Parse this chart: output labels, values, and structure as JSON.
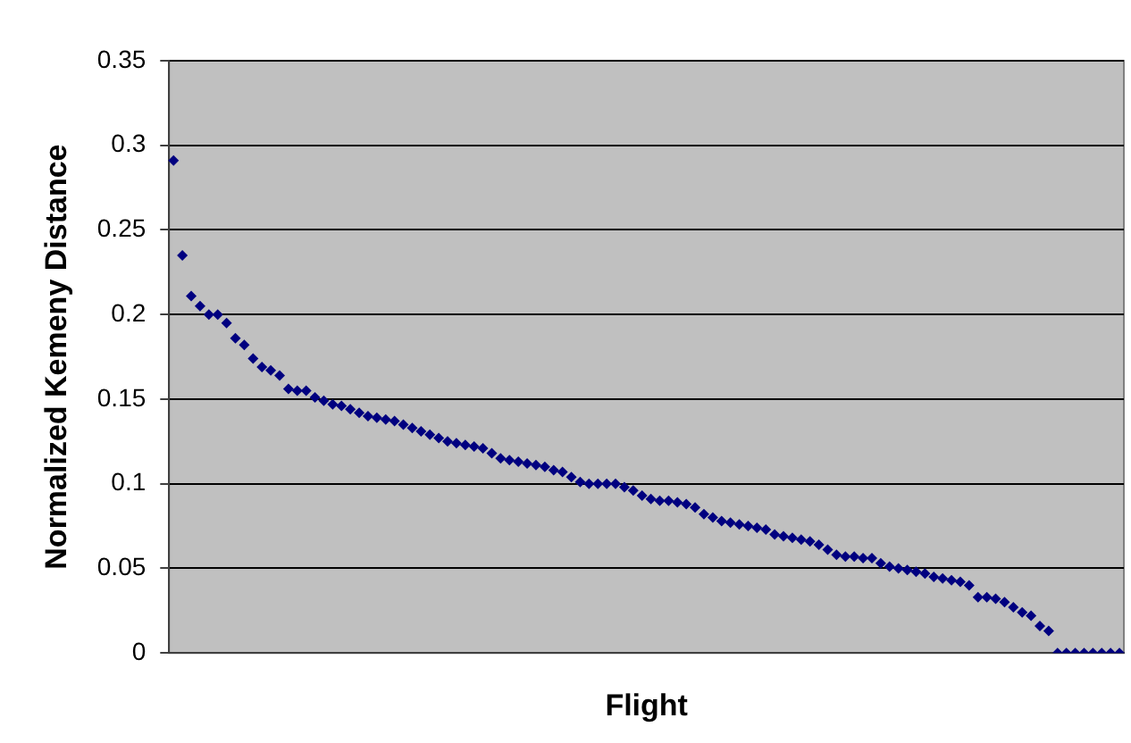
{
  "chart_data": {
    "type": "scatter",
    "xlabel": "Flight",
    "ylabel": "Normalized Kemeny Distance",
    "categories": [
      null,
      null,
      null,
      null,
      null,
      null,
      null,
      null,
      null,
      null,
      null,
      null,
      null,
      null,
      null,
      null,
      null,
      null,
      null,
      null,
      null,
      null,
      null,
      null,
      null,
      null,
      null,
      null,
      null,
      null,
      null,
      null,
      null,
      null,
      null,
      null,
      null,
      null,
      null,
      null,
      null,
      null,
      null,
      null,
      null,
      null,
      null,
      null,
      null,
      null,
      null,
      null,
      null,
      null,
      null,
      null,
      null,
      null,
      null,
      null,
      null,
      null,
      null,
      null,
      null,
      null,
      null,
      null,
      null,
      null,
      null,
      null,
      null,
      null,
      null,
      null,
      null,
      null,
      null,
      null,
      null,
      null,
      null,
      null,
      null,
      null,
      null,
      null,
      null,
      null,
      null,
      null,
      null,
      null,
      null,
      null,
      null,
      null,
      null,
      null,
      null,
      null,
      null,
      null,
      null,
      null,
      null,
      null
    ],
    "series": [
      {
        "color": "#000080",
        "values": [
          0.291,
          0.235,
          0.211,
          0.205,
          0.2,
          0.2,
          0.195,
          0.186,
          0.182,
          0.174,
          0.169,
          0.167,
          0.164,
          0.156,
          0.155,
          0.155,
          0.151,
          0.149,
          0.147,
          0.146,
          0.144,
          0.142,
          0.14,
          0.139,
          0.138,
          0.137,
          0.135,
          0.133,
          0.131,
          0.129,
          0.127,
          0.125,
          0.124,
          0.123,
          0.122,
          0.121,
          0.118,
          0.115,
          0.114,
          0.113,
          0.112,
          0.111,
          0.11,
          0.108,
          0.107,
          0.104,
          0.101,
          0.1,
          0.1,
          0.1,
          0.1,
          0.098,
          0.096,
          0.093,
          0.091,
          0.09,
          0.09,
          0.089,
          0.088,
          0.086,
          0.082,
          0.08,
          0.078,
          0.077,
          0.076,
          0.075,
          0.074,
          0.073,
          0.07,
          0.069,
          0.068,
          0.067,
          0.066,
          0.064,
          0.061,
          0.058,
          0.057,
          0.057,
          0.056,
          0.056,
          0.053,
          0.051,
          0.05,
          0.049,
          0.048,
          0.047,
          0.045,
          0.044,
          0.043,
          0.042,
          0.04,
          0.033,
          0.033,
          0.032,
          0.03,
          0.027,
          0.024,
          0.022,
          0.016,
          0.013,
          0,
          0,
          0,
          0,
          0,
          0,
          0,
          0
        ]
      }
    ],
    "ylim": [
      0,
      0.35
    ],
    "yticks": [
      0,
      0.05,
      0.1,
      0.15,
      0.2,
      0.25,
      0.3,
      0.35
    ],
    "grid": "y",
    "legend": false,
    "tick_labels": "y",
    "marker": "diamond"
  }
}
